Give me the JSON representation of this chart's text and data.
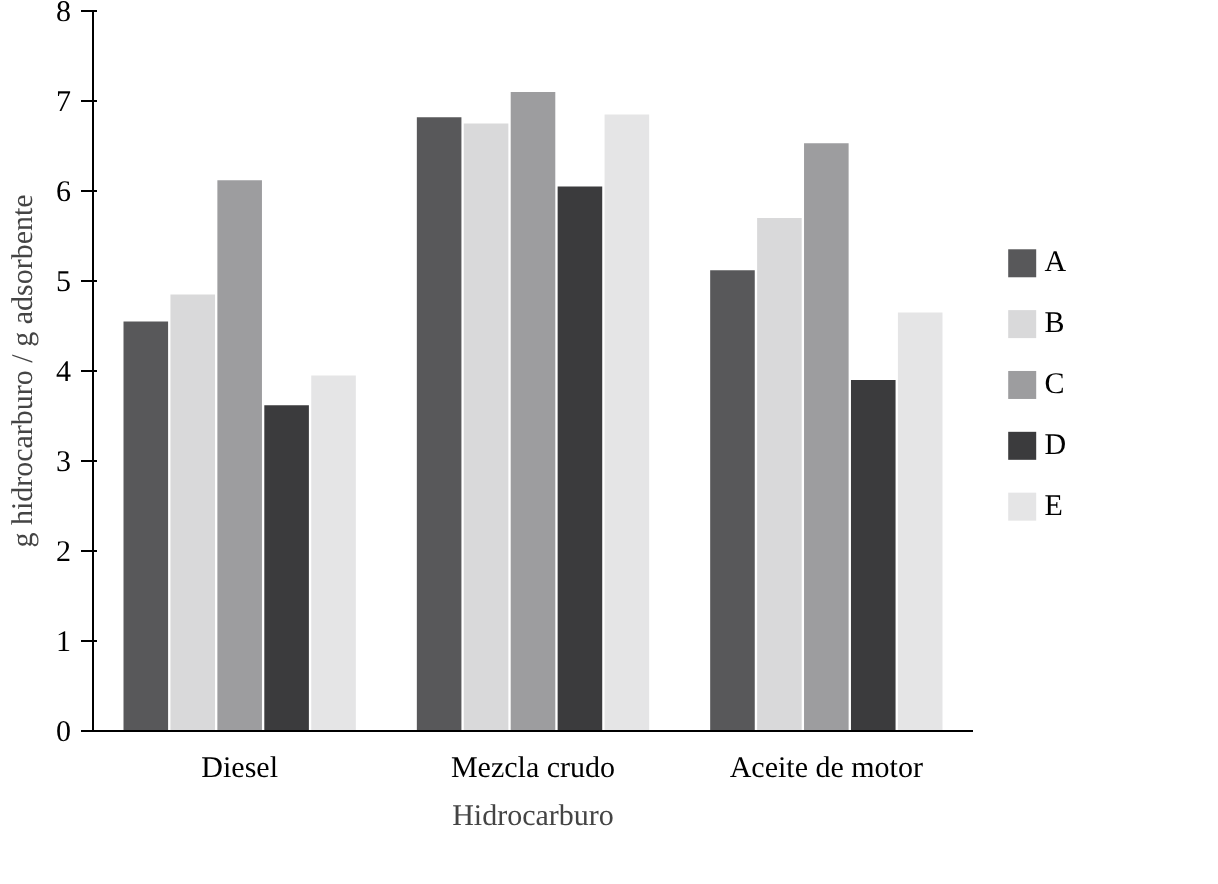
{
  "chart_data": {
    "type": "bar",
    "xlabel": "Hidrocarburo",
    "ylabel": "g hidrocarburo / g adsorbente",
    "categories": [
      "Diesel",
      "Mezcla crudo",
      "Aceite de motor"
    ],
    "series": [
      {
        "name": "A",
        "color": "#58585a",
        "values": [
          4.55,
          6.82,
          5.12
        ]
      },
      {
        "name": "B",
        "color": "#d9d9da",
        "values": [
          4.85,
          6.75,
          5.7
        ]
      },
      {
        "name": "C",
        "color": "#9d9d9f",
        "values": [
          6.12,
          7.1,
          6.53
        ]
      },
      {
        "name": "D",
        "color": "#3b3b3d",
        "values": [
          3.62,
          6.05,
          3.9
        ]
      },
      {
        "name": "E",
        "color": "#e5e5e6",
        "values": [
          3.95,
          6.85,
          4.65
        ]
      }
    ],
    "ylim": [
      0,
      8
    ],
    "yticks": [
      0,
      1,
      2,
      3,
      4,
      5,
      6,
      7,
      8
    ],
    "grid": false,
    "legend": "right"
  }
}
